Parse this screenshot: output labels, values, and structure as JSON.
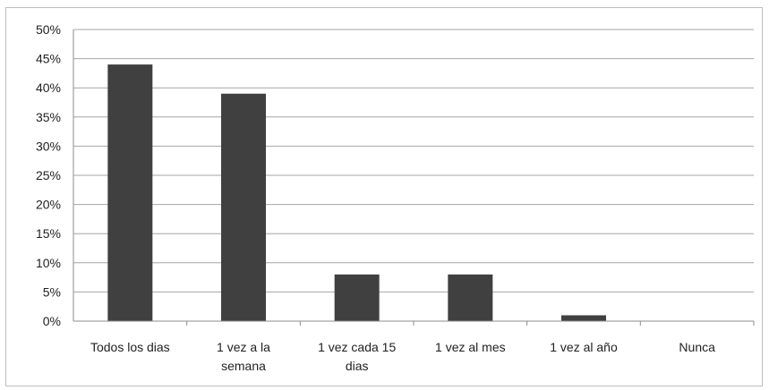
{
  "chart_data": {
    "type": "bar",
    "categories": [
      [
        "Todos los dias"
      ],
      [
        "1 vez a la",
        "semana"
      ],
      [
        "1 vez cada 15",
        "dias"
      ],
      [
        "1 vez al mes"
      ],
      [
        "1 vez al año"
      ],
      [
        "Nunca"
      ]
    ],
    "values": [
      44,
      39,
      8,
      8,
      1,
      0
    ],
    "ylim": [
      0,
      50
    ],
    "yticks": [
      "0%",
      "5%",
      "10%",
      "15%",
      "20%",
      "25%",
      "30%",
      "35%",
      "40%",
      "45%",
      "50%"
    ],
    "grid": true,
    "bar_color": "#404040",
    "gridline_color": "#a6a6a6",
    "title": "",
    "xlabel": "",
    "ylabel": ""
  }
}
